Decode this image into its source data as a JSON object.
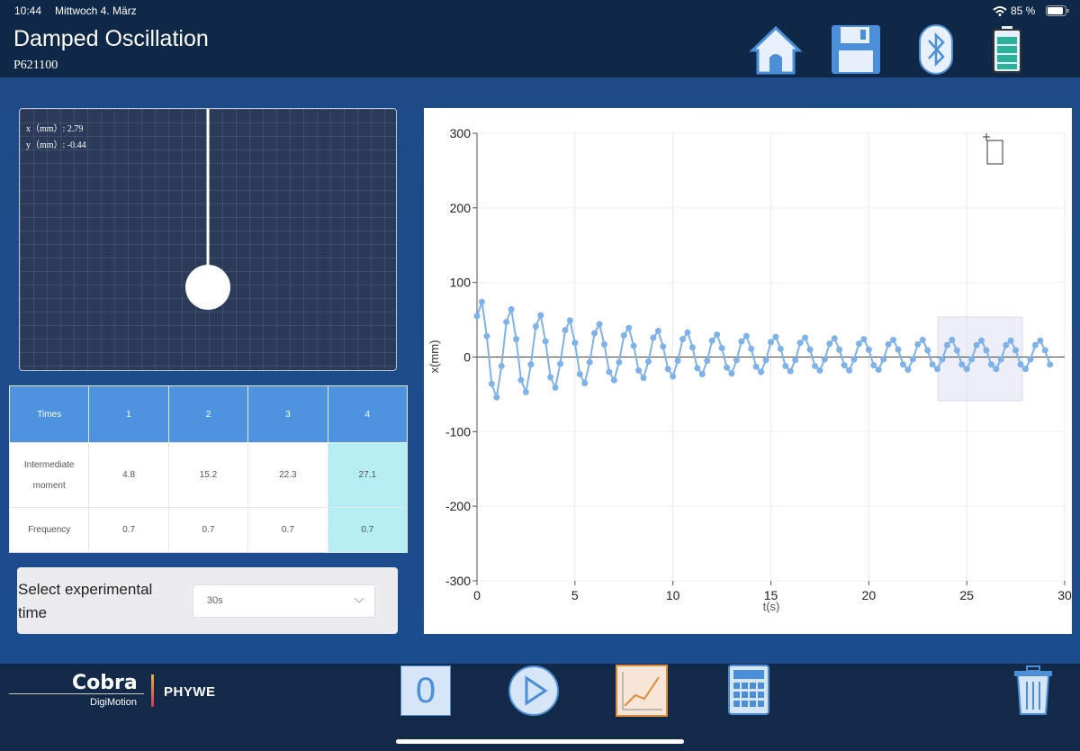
{
  "status_bar": {
    "time": "10:44",
    "date": "Mittwoch 4. März",
    "battery": "85 %"
  },
  "header": {
    "title": "Damped Oscillation",
    "code": "P621100"
  },
  "pendulum": {
    "x_readout": "x（mm）: 2.79",
    "y_readout": "y（mm）: -0.44"
  },
  "table": {
    "header": [
      "Times",
      "1",
      "2",
      "3",
      "4"
    ],
    "rows": [
      [
        "Intermediate moment",
        "4.8",
        "15.2",
        "22.3",
        "27.1"
      ],
      [
        "Frequency",
        "0.7",
        "0.7",
        "0.7",
        "0.7"
      ]
    ]
  },
  "selector": {
    "label": "Select experimental time",
    "value": "30s"
  },
  "footer": {
    "brand": "Cobra",
    "sub": "DigiMotion",
    "company": "PHYWE",
    "zero_button": "0"
  },
  "chart_data": {
    "type": "line",
    "xlabel": "t(s)",
    "ylabel": "x(mm)",
    "color": "#7fb2e8",
    "grid": true,
    "xlim": [
      0,
      30
    ],
    "ylim": [
      -300,
      300
    ],
    "xticks": [
      0,
      5,
      10,
      15,
      20,
      25,
      30
    ],
    "yticks": [
      -300,
      -200,
      -100,
      0,
      100,
      200,
      300
    ],
    "x": [
      0,
      0.25,
      0.5,
      0.75,
      1,
      1.25,
      1.5,
      1.75,
      2,
      2.25,
      2.5,
      2.75,
      3,
      3.25,
      3.5,
      3.75,
      4,
      4.25,
      4.5,
      4.75,
      5,
      5.25,
      5.5,
      5.75,
      6,
      6.25,
      6.5,
      6.75,
      7,
      7.25,
      7.5,
      7.75,
      8,
      8.25,
      8.5,
      8.75,
      9,
      9.25,
      9.5,
      9.75,
      10,
      10.25,
      10.5,
      10.75,
      11,
      11.25,
      11.5,
      11.75,
      12,
      12.25,
      12.5,
      12.75,
      13,
      13.25,
      13.5,
      13.75,
      14,
      14.25,
      14.5,
      14.75,
      15,
      15.25,
      15.5,
      15.75,
      16,
      16.25,
      16.5,
      16.75,
      17,
      17.25,
      17.5,
      17.75,
      18,
      18.25,
      18.5,
      18.75,
      19,
      19.25,
      19.5,
      19.75,
      20,
      20.25,
      20.5,
      20.75,
      21,
      21.25,
      21.5,
      21.75,
      22,
      22.25,
      22.5,
      22.75,
      23,
      23.25,
      23.5,
      23.75,
      24,
      24.25,
      24.5,
      24.75,
      25,
      25.25,
      25.5,
      25.75,
      26,
      26.25,
      26.5,
      26.75,
      27,
      27.25,
      27.5,
      27.75,
      28,
      28.25,
      28.5,
      28.75,
      29,
      29.25
    ],
    "values": [
      55,
      74,
      28,
      -36,
      -54,
      -12,
      47,
      64,
      24,
      -31,
      -47,
      -10,
      41,
      56,
      21,
      -27,
      -41,
      -9,
      36,
      49,
      19,
      -23,
      -35,
      -7,
      32,
      44,
      17,
      -20,
      -31,
      -7,
      29,
      39,
      15,
      -18,
      -28,
      -6,
      26,
      35,
      14,
      -16,
      -26,
      -5,
      24,
      33,
      13,
      -15,
      -23,
      -5,
      22,
      30,
      12,
      -14,
      -22,
      -4,
      21,
      28,
      11,
      -13,
      -20,
      -4,
      20,
      27,
      11,
      -12,
      -19,
      -4,
      19,
      26,
      10,
      -12,
      -18,
      -3,
      18,
      25,
      10,
      -11,
      -18,
      -3,
      18,
      24,
      10,
      -11,
      -17,
      -3,
      17,
      23,
      10,
      -10,
      -17,
      -3,
      17,
      23,
      9,
      -10,
      -16,
      -3,
      16,
      23,
      9,
      -10,
      -16,
      -3,
      16,
      22,
      9,
      -10,
      -16,
      -3,
      16,
      22,
      9,
      -10,
      -16,
      -3,
      16,
      22,
      9,
      -10
    ]
  }
}
